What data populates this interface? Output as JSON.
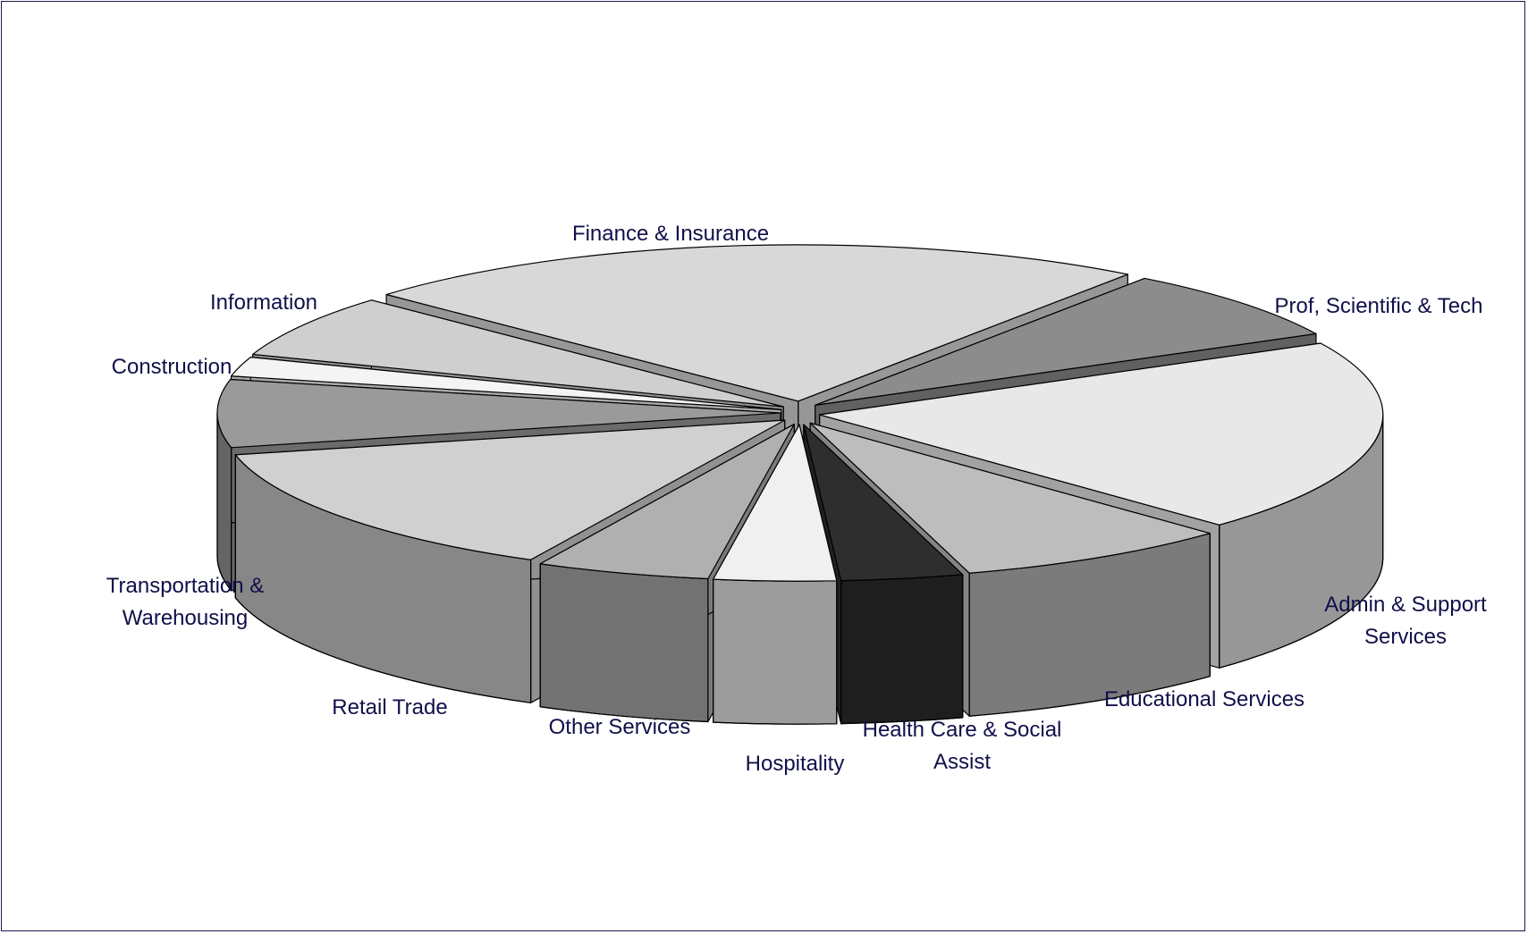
{
  "chart_data": {
    "type": "pie3d",
    "categories": [
      "Finance & Insurance",
      "Prof, Scientific & Tech",
      "Admin & Support Services",
      "Educational Services",
      "Health Care & Social Assist",
      "Hospitality",
      "Other Services",
      "Retail Trade",
      "Transportation & Warehousing",
      "Construction",
      "Information"
    ],
    "values": [
      23,
      7.5,
      20,
      8,
      3.5,
      3.5,
      5,
      14,
      7,
      2,
      6.5
    ],
    "colors": [
      "#d8d8d8",
      "#8c8c8c",
      "#e8e8e8",
      "#bdbdbd",
      "#2e2e2e",
      "#f0f0f0",
      "#b0b0b0",
      "#d0d0d0",
      "#9a9a9a",
      "#f4f4f4",
      "#cfcfcf"
    ]
  }
}
